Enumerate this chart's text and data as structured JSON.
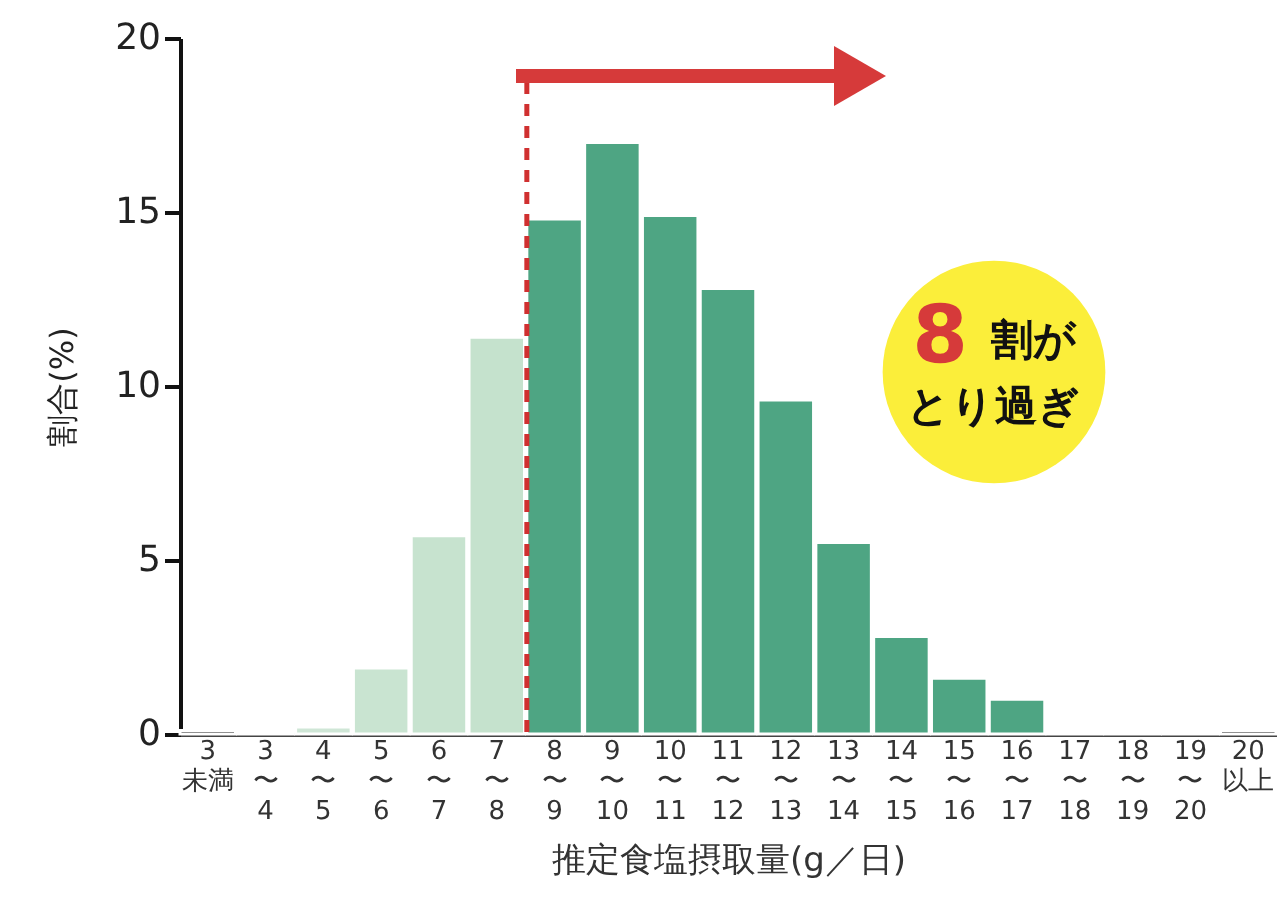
{
  "chart_data": {
    "type": "bar",
    "xlabel": "推定食塩摂取量(g／日)",
    "ylabel": "割合(%)",
    "categories": [
      "3\n未満",
      "3\n〜\n4",
      "4\n〜\n5",
      "5\n〜\n6",
      "6\n〜\n7",
      "7\n〜\n8",
      "8\n〜\n9",
      "9\n〜\n10",
      "10\n〜\n11",
      "11\n〜\n12",
      "12\n〜\n13",
      "13\n〜\n14",
      "14\n〜\n15",
      "15\n〜\n16",
      "16\n〜\n17",
      "17\n〜\n18",
      "18\n〜\n19",
      "19\n〜\n20",
      "20\n以上"
    ],
    "values": [
      0.1,
      0.05,
      0.2,
      1.9,
      5.7,
      11.4,
      14.8,
      17.0,
      14.9,
      12.8,
      9.6,
      5.5,
      2.8,
      1.6,
      1.0,
      0.05,
      0.05,
      0.05,
      0.1
    ],
    "colors": [
      "#222222",
      "#555555",
      "#cfe6d6",
      "#c9e4d1",
      "#c7e3cf",
      "#c5e2cd",
      "#4ea583",
      "#4ea583",
      "#4ea583",
      "#4ea583",
      "#4ea583",
      "#4ea583",
      "#4ea583",
      "#4ea583",
      "#4ea583",
      "#777777",
      "#777777",
      "#777777",
      "#222222"
    ],
    "ylim": [
      0,
      20
    ],
    "yticks": [
      0,
      5,
      10,
      15,
      20
    ],
    "grid": false,
    "ref_lines": [
      {
        "axis": "x",
        "value": "8\n〜\n9",
        "color": "#d03030",
        "line_style": "dashed"
      }
    ],
    "annotations": [
      "8",
      "割が",
      "とり過ぎ"
    ]
  }
}
